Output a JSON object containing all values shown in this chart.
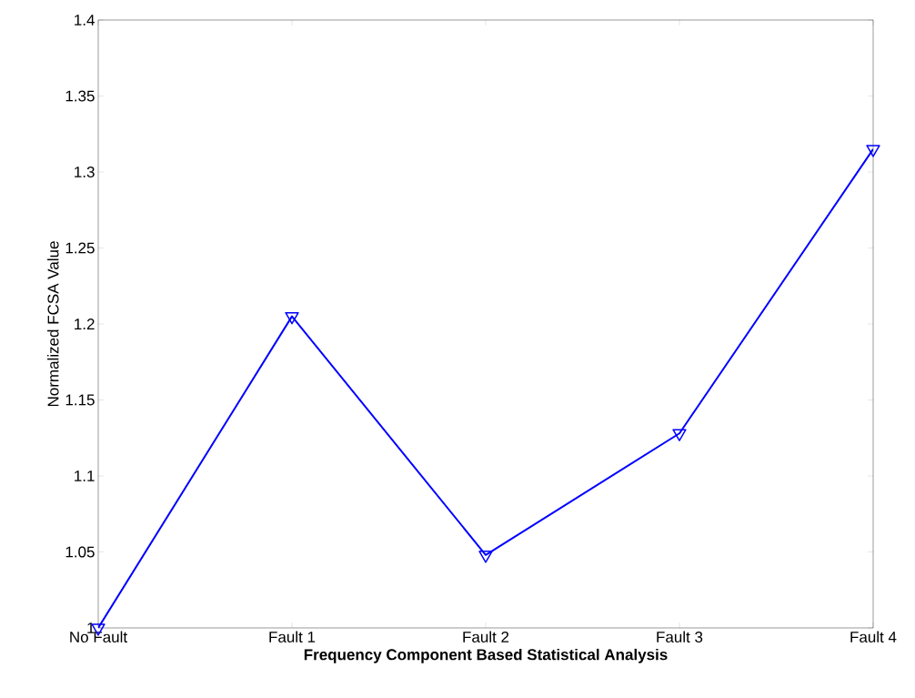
{
  "chart_data": {
    "type": "line",
    "xlabel": "Frequency Component Based Statistical Analysis",
    "ylabel": "Normalized FCSA Value",
    "categories": [
      "No Fault",
      "Fault 1",
      "Fault 2",
      "Fault 3",
      "Fault 4"
    ],
    "series": [
      {
        "color": "#0000ff",
        "values": [
          1.0,
          1.205,
          1.048,
          1.128,
          1.315
        ]
      }
    ],
    "ylim": [
      1,
      1.4
    ],
    "yticks": [
      1,
      1.05,
      1.1,
      1.15,
      1.2,
      1.25,
      1.3,
      1.35,
      1.4
    ],
    "marker": "triangle",
    "line_style": "solid"
  }
}
